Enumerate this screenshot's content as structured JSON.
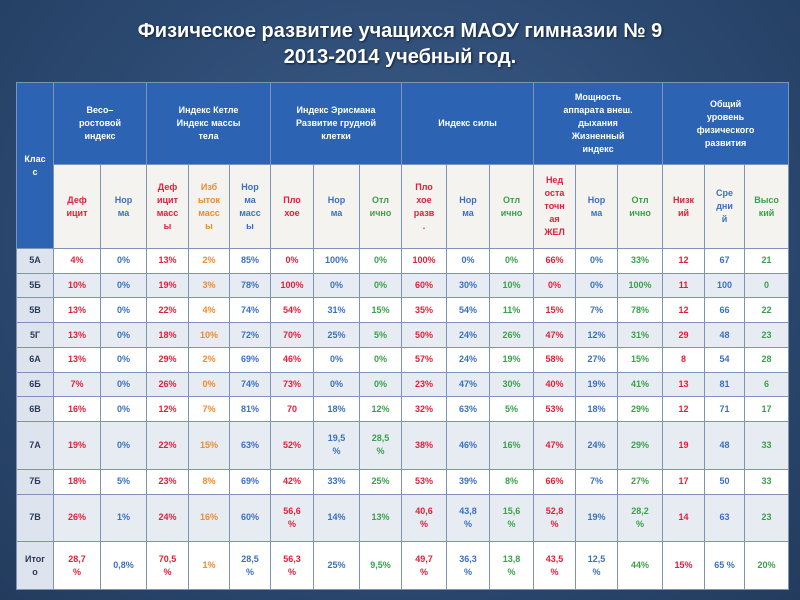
{
  "title": {
    "line1": "Физическое развитие учащихся МАОУ гимназии № 9",
    "line2": "2013-2014 учебный год."
  },
  "groups": [
    {
      "label": "Клас\nс"
    },
    {
      "label": "Весо–\nростовой\nиндекс"
    },
    {
      "label": "Индекс Кетле\nИндекс массы\nтела"
    },
    {
      "label": "Индекс Эрисмана\nРазвитие грудной\nклетки"
    },
    {
      "label": "Индекс силы"
    },
    {
      "label": "Мощность\nаппарата внеш.\nдыхания\nЖизненный\nиндекс"
    },
    {
      "label": "Общий\nуровень\nфизического\nразвития"
    }
  ],
  "subheaders": [
    {
      "label": "Деф\nицит",
      "color": "red"
    },
    {
      "label": "Нор\nма",
      "color": "blue"
    },
    {
      "label": "Деф\nицит\nмасс\nы",
      "color": "red"
    },
    {
      "label": "Изб\nыток\nмасс\nы",
      "color": "orange"
    },
    {
      "label": "Нор\nма\nмасс\nы",
      "color": "blue"
    },
    {
      "label": "Пло\nхое",
      "color": "red"
    },
    {
      "label": "Нор\nма",
      "color": "blue"
    },
    {
      "label": "Отл\nично",
      "color": "green"
    },
    {
      "label": "Пло\nхое\nразв\n.",
      "color": "red"
    },
    {
      "label": "Нор\nма",
      "color": "blue"
    },
    {
      "label": "Отл\nично",
      "color": "green"
    },
    {
      "label": "Нед\nоста\nточн\nая\nЖЕЛ",
      "color": "red"
    },
    {
      "label": "Нор\nма",
      "color": "blue"
    },
    {
      "label": "Отл\nично",
      "color": "green"
    },
    {
      "label": "Низк\nий",
      "color": "red"
    },
    {
      "label": "Сре\nдни\nй",
      "color": "blue"
    },
    {
      "label": "Высо\nкий",
      "color": "green"
    }
  ],
  "column_colors": [
    "red",
    "blue",
    "red",
    "orange",
    "blue",
    "red",
    "blue",
    "green",
    "red",
    "blue",
    "green",
    "red",
    "blue",
    "green",
    "red",
    "blue",
    "green"
  ],
  "rows": [
    {
      "cls": "5А",
      "values": [
        "4%",
        "0%",
        "13%",
        "2%",
        "85%",
        "0%",
        "100%",
        "0%",
        "100%",
        "0%",
        "0%",
        "66%",
        "0%",
        "33%",
        "12",
        "67",
        "21"
      ]
    },
    {
      "cls": "5Б",
      "values": [
        "10%",
        "0%",
        "19%",
        "3%",
        "78%",
        "100%",
        "0%",
        "0%",
        "60%",
        "30%",
        "10%",
        "0%",
        "0%",
        "100%",
        "11",
        "100",
        "0"
      ]
    },
    {
      "cls": "5В",
      "values": [
        "13%",
        "0%",
        "22%",
        "4%",
        "74%",
        "54%",
        "31%",
        "15%",
        "35%",
        "54%",
        "11%",
        "15%",
        "7%",
        "78%",
        "12",
        "66",
        "22"
      ]
    },
    {
      "cls": "5Г",
      "values": [
        "13%",
        "0%",
        "18%",
        "10%",
        "72%",
        "70%",
        "25%",
        "5%",
        "50%",
        "24%",
        "26%",
        "47%",
        "12%",
        "31%",
        "29",
        "48",
        "23"
      ]
    },
    {
      "cls": "6А",
      "values": [
        "13%",
        "0%",
        "29%",
        "2%",
        "69%",
        "46%",
        "0%",
        "0%",
        "57%",
        "24%",
        "19%",
        "58%",
        "27%",
        "15%",
        "8",
        "54",
        "28"
      ]
    },
    {
      "cls": "6Б",
      "values": [
        "7%",
        "0%",
        "26%",
        "0%",
        "74%",
        "73%",
        "0%",
        "0%",
        "23%",
        "47%",
        "30%",
        "40%",
        "19%",
        "41%",
        "13",
        "81",
        "6"
      ]
    },
    {
      "cls": "6В",
      "values": [
        "16%",
        "0%",
        "12%",
        "7%",
        "81%",
        "70",
        "18%",
        "12%",
        "32%",
        "63%",
        "5%",
        "53%",
        "18%",
        "29%",
        "12",
        "71",
        "17"
      ]
    },
    {
      "cls": "7А",
      "values": [
        "19%",
        "0%",
        "22%",
        "15%",
        "63%",
        "52%",
        "19,5\n%",
        "28,5\n%",
        "38%",
        "46%",
        "16%",
        "47%",
        "24%",
        "29%",
        "19",
        "48",
        "33"
      ]
    },
    {
      "cls": "7Б",
      "values": [
        "18%",
        "5%",
        "23%",
        "8%",
        "69%",
        "42%",
        "33%",
        "25%",
        "53%",
        "39%",
        "8%",
        "66%",
        "7%",
        "27%",
        "17",
        "50",
        "33"
      ]
    },
    {
      "cls": "7В",
      "values": [
        "26%",
        "1%",
        "24%",
        "16%",
        "60%",
        "56,6\n%",
        "14%",
        "13%",
        "40,6\n%",
        "43,8\n%",
        "15,6\n%",
        "52,8\n%",
        "19%",
        "28,2\n%",
        "14",
        "63",
        "23"
      ]
    },
    {
      "cls": "Итог\nо",
      "values": [
        "28,7\n%",
        "0,8%",
        "70,5\n%",
        "1%",
        "28,5\n%",
        "56,3\n%",
        "25%",
        "9,5%",
        "49,7\n%",
        "36,3\n%",
        "13,8\n%",
        "43,5\n%",
        "12,5\n%",
        "44%",
        "15%",
        "65 %",
        "20%"
      ]
    }
  ]
}
